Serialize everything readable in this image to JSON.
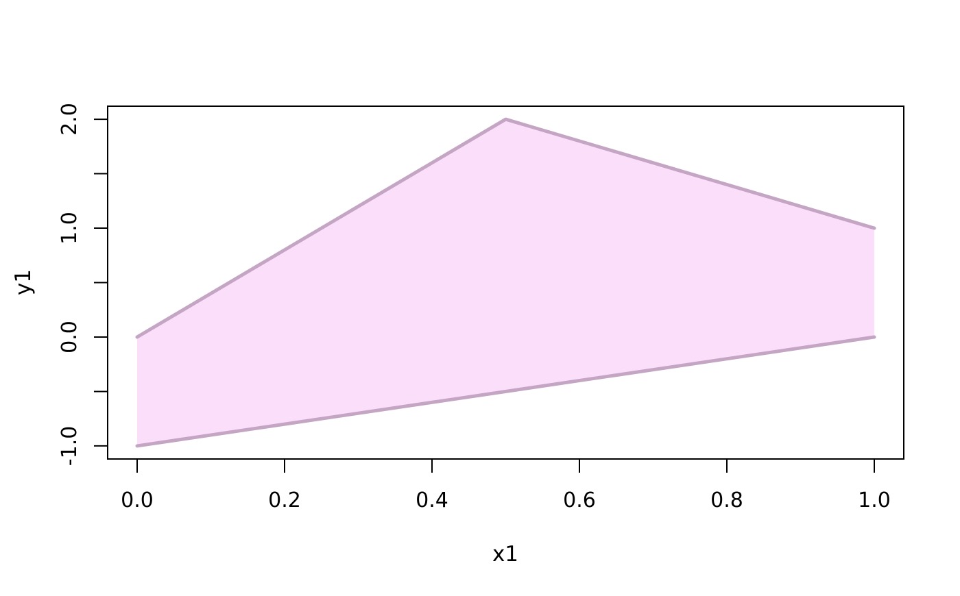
{
  "chart_data": {
    "type": "area",
    "title": "",
    "xlabel": "x1",
    "ylabel": "y1",
    "xlim": [
      -0.04,
      1.04
    ],
    "ylim": [
      -1.12,
      2.12
    ],
    "x_ticks": [
      0,
      0.2,
      0.4,
      0.6,
      0.8,
      1.0
    ],
    "x_tick_labels": [
      "0.0",
      "0.2",
      "0.4",
      "0.6",
      "0.8",
      "1.0"
    ],
    "y_ticks": [
      -1.0,
      -0.5,
      0.0,
      0.5,
      1.0,
      1.5,
      2.0
    ],
    "y_labeled_ticks": [
      {
        "value": -1.0,
        "label": "-1.0"
      },
      {
        "value": 0.0,
        "label": "0.0"
      },
      {
        "value": 1.0,
        "label": "1.0"
      },
      {
        "value": 2.0,
        "label": "2.0"
      }
    ],
    "grid": false,
    "legend": null,
    "band": {
      "polygon": [
        [
          0,
          0
        ],
        [
          0.5,
          2
        ],
        [
          1,
          1
        ],
        [
          1,
          0
        ],
        [
          0,
          -1
        ]
      ],
      "upper_line": {
        "x": [
          0,
          0.5,
          1
        ],
        "y": [
          0,
          2,
          1
        ]
      },
      "lower_line": {
        "x": [
          0,
          1
        ],
        "y": [
          -1,
          0
        ]
      },
      "fill_color": "#FBDEF9",
      "line_color": "#C4A6C4",
      "line_width": 5
    },
    "colors": {
      "axis": "#000000",
      "background": "#FFFFFF",
      "text": "#000000"
    }
  }
}
